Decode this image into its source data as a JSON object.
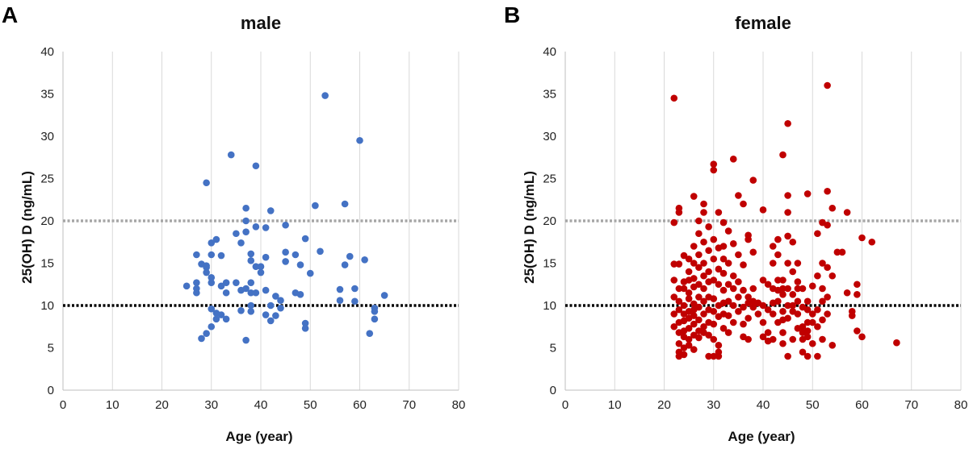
{
  "chart_data": [
    {
      "type": "scatter",
      "panel_letter": "A",
      "title": "male",
      "xlabel": "Age (year)",
      "ylabel": "25(OH) D (ng/mL)",
      "xlim": [
        0,
        80
      ],
      "ylim": [
        0,
        40
      ],
      "xticks": [
        0,
        10,
        20,
        30,
        40,
        50,
        60,
        70,
        80
      ],
      "yticks": [
        0,
        5,
        10,
        15,
        20,
        25,
        30,
        35,
        40
      ],
      "grid": "vertical",
      "point_color": "#4472C4",
      "reference_lines": [
        {
          "y": 20,
          "color": "#A6A6A6",
          "style": "dotted"
        },
        {
          "y": 10,
          "color": "#000000",
          "style": "dotted"
        }
      ],
      "points": [
        [
          25,
          12.3
        ],
        [
          27,
          16.0
        ],
        [
          27,
          12.7
        ],
        [
          27,
          11.5
        ],
        [
          27,
          12.0
        ],
        [
          28,
          14.9
        ],
        [
          28,
          6.1
        ],
        [
          29,
          14.5
        ],
        [
          29,
          13.9
        ],
        [
          29,
          24.5
        ],
        [
          29,
          6.7
        ],
        [
          29,
          14.7
        ],
        [
          30,
          17.4
        ],
        [
          30,
          13.3
        ],
        [
          30,
          12.7
        ],
        [
          30,
          16.0
        ],
        [
          30,
          7.5
        ],
        [
          30,
          9.6
        ],
        [
          31,
          17.8
        ],
        [
          31,
          8.4
        ],
        [
          31,
          9.1
        ],
        [
          32,
          15.9
        ],
        [
          32,
          12.3
        ],
        [
          32,
          8.9
        ],
        [
          33,
          12.7
        ],
        [
          33,
          8.4
        ],
        [
          33,
          11.5
        ],
        [
          34,
          27.8
        ],
        [
          35,
          18.5
        ],
        [
          35,
          12.7
        ],
        [
          36,
          17.4
        ],
        [
          36,
          9.4
        ],
        [
          36,
          11.8
        ],
        [
          37,
          21.5
        ],
        [
          37,
          20.0
        ],
        [
          37,
          18.7
        ],
        [
          37,
          12.0
        ],
        [
          37,
          5.9
        ],
        [
          38,
          16.1
        ],
        [
          38,
          12.7
        ],
        [
          38,
          10.0
        ],
        [
          38,
          9.3
        ],
        [
          38,
          15.3
        ],
        [
          38,
          11.5
        ],
        [
          39,
          26.5
        ],
        [
          39,
          19.3
        ],
        [
          39,
          14.6
        ],
        [
          39,
          11.5
        ],
        [
          40,
          14.6
        ],
        [
          40,
          13.9
        ],
        [
          41,
          19.2
        ],
        [
          41,
          15.7
        ],
        [
          41,
          11.8
        ],
        [
          41,
          8.9
        ],
        [
          42,
          21.2
        ],
        [
          42,
          8.2
        ],
        [
          42,
          10.0
        ],
        [
          43,
          11.1
        ],
        [
          43,
          8.8
        ],
        [
          44,
          10.6
        ],
        [
          44,
          9.7
        ],
        [
          45,
          19.5
        ],
        [
          45,
          16.3
        ],
        [
          45,
          15.2
        ],
        [
          47,
          16.0
        ],
        [
          47,
          11.5
        ],
        [
          48,
          14.8
        ],
        [
          48,
          11.3
        ],
        [
          49,
          17.9
        ],
        [
          49,
          7.9
        ],
        [
          49,
          7.3
        ],
        [
          50,
          13.8
        ],
        [
          51,
          21.8
        ],
        [
          52,
          16.4
        ],
        [
          53,
          34.8
        ],
        [
          56,
          11.9
        ],
        [
          56,
          10.6
        ],
        [
          57,
          22.0
        ],
        [
          57,
          14.8
        ],
        [
          58,
          15.8
        ],
        [
          59,
          12.0
        ],
        [
          59,
          10.5
        ],
        [
          60,
          29.5
        ],
        [
          61,
          15.4
        ],
        [
          62,
          6.7
        ],
        [
          63,
          9.7
        ],
        [
          63,
          9.3
        ],
        [
          63,
          8.4
        ],
        [
          65,
          11.2
        ]
      ]
    },
    {
      "type": "scatter",
      "panel_letter": "B",
      "title": "female",
      "xlabel": "Age (year)",
      "ylabel": "25(OH) D (ng/mL)",
      "xlim": [
        0,
        80
      ],
      "ylim": [
        0,
        40
      ],
      "xticks": [
        0,
        10,
        20,
        30,
        40,
        50,
        60,
        70,
        80
      ],
      "yticks": [
        0,
        5,
        10,
        15,
        20,
        25,
        30,
        35,
        40
      ],
      "grid": "vertical",
      "point_color": "#C00000",
      "reference_lines": [
        {
          "y": 20,
          "color": "#A6A6A6",
          "style": "dotted"
        },
        {
          "y": 10,
          "color": "#000000",
          "style": "dotted"
        }
      ],
      "points": [
        [
          22,
          34.5
        ],
        [
          22,
          19.8
        ],
        [
          22,
          14.9
        ],
        [
          22,
          13.0
        ],
        [
          22,
          11.0
        ],
        [
          22,
          9.0
        ],
        [
          22,
          7.5
        ],
        [
          23,
          21.5
        ],
        [
          23,
          21.0
        ],
        [
          23,
          14.9
        ],
        [
          23,
          12.0
        ],
        [
          23,
          10.5
        ],
        [
          23,
          9.5
        ],
        [
          23,
          8.0
        ],
        [
          23,
          6.8
        ],
        [
          23,
          5.5
        ],
        [
          23,
          4.5
        ],
        [
          23,
          4.0
        ],
        [
          24,
          15.9
        ],
        [
          24,
          12.8
        ],
        [
          24,
          12.0
        ],
        [
          24,
          10.0
        ],
        [
          24,
          9.0
        ],
        [
          24,
          8.2
        ],
        [
          24,
          7.0
        ],
        [
          24,
          6.3
        ],
        [
          24,
          5.0
        ],
        [
          24,
          4.2
        ],
        [
          25,
          15.5
        ],
        [
          25,
          14.0
        ],
        [
          25,
          13.0
        ],
        [
          25,
          11.5
        ],
        [
          25,
          10.8
        ],
        [
          25,
          9.3
        ],
        [
          25,
          8.5
        ],
        [
          25,
          7.3
        ],
        [
          25,
          6.0
        ],
        [
          25,
          5.3
        ],
        [
          26,
          22.9
        ],
        [
          26,
          17.0
        ],
        [
          26,
          15.0
        ],
        [
          26,
          13.2
        ],
        [
          26,
          12.2
        ],
        [
          26,
          10.2
        ],
        [
          26,
          9.5
        ],
        [
          26,
          8.8
        ],
        [
          26,
          7.8
        ],
        [
          26,
          6.5
        ],
        [
          26,
          4.8
        ],
        [
          27,
          20.0
        ],
        [
          27,
          18.5
        ],
        [
          27,
          16.0
        ],
        [
          27,
          14.5
        ],
        [
          27,
          12.5
        ],
        [
          27,
          11.0
        ],
        [
          27,
          9.8
        ],
        [
          27,
          8.3
        ],
        [
          27,
          7.0
        ],
        [
          27,
          6.2
        ],
        [
          28,
          22.0
        ],
        [
          28,
          21.0
        ],
        [
          28,
          17.5
        ],
        [
          28,
          15.0
        ],
        [
          28,
          13.5
        ],
        [
          28,
          12.0
        ],
        [
          28,
          10.5
        ],
        [
          28,
          9.0
        ],
        [
          28,
          7.5
        ],
        [
          28,
          6.8
        ],
        [
          29,
          19.3
        ],
        [
          29,
          16.5
        ],
        [
          29,
          14.0
        ],
        [
          29,
          12.8
        ],
        [
          29,
          11.0
        ],
        [
          29,
          9.5
        ],
        [
          29,
          8.0
        ],
        [
          29,
          6.5
        ],
        [
          29,
          4.0
        ],
        [
          30,
          26.7
        ],
        [
          30,
          26.0
        ],
        [
          30,
          17.8
        ],
        [
          30,
          15.5
        ],
        [
          30,
          13.0
        ],
        [
          30,
          10.8
        ],
        [
          30,
          9.3
        ],
        [
          30,
          7.8
        ],
        [
          30,
          6.0
        ],
        [
          30,
          4.0
        ],
        [
          31,
          21.0
        ],
        [
          31,
          16.8
        ],
        [
          31,
          14.3
        ],
        [
          31,
          12.5
        ],
        [
          31,
          10.0
        ],
        [
          31,
          8.7
        ],
        [
          31,
          5.3
        ],
        [
          31,
          4.5
        ],
        [
          31,
          4.0
        ],
        [
          32,
          19.8
        ],
        [
          32,
          17.0
        ],
        [
          32,
          15.5
        ],
        [
          32,
          13.8
        ],
        [
          32,
          11.8
        ],
        [
          32,
          10.3
        ],
        [
          32,
          9.0
        ],
        [
          32,
          7.3
        ],
        [
          33,
          18.8
        ],
        [
          33,
          15.0
        ],
        [
          33,
          12.5
        ],
        [
          33,
          10.5
        ],
        [
          33,
          8.8
        ],
        [
          33,
          6.8
        ],
        [
          34,
          27.3
        ],
        [
          34,
          17.3
        ],
        [
          34,
          13.5
        ],
        [
          34,
          12.0
        ],
        [
          34,
          10.0
        ],
        [
          34,
          8.0
        ],
        [
          35,
          23.0
        ],
        [
          35,
          16.0
        ],
        [
          35,
          12.8
        ],
        [
          35,
          11.0
        ],
        [
          35,
          9.3
        ],
        [
          36,
          22.0
        ],
        [
          36,
          14.8
        ],
        [
          36,
          11.8
        ],
        [
          36,
          9.8
        ],
        [
          36,
          7.8
        ],
        [
          36,
          6.3
        ],
        [
          37,
          18.3
        ],
        [
          37,
          17.8
        ],
        [
          37,
          11.0
        ],
        [
          37,
          10.3
        ],
        [
          37,
          8.5
        ],
        [
          37,
          6.0
        ],
        [
          38,
          24.8
        ],
        [
          38,
          16.3
        ],
        [
          38,
          12.0
        ],
        [
          38,
          10.5
        ],
        [
          38,
          9.8
        ],
        [
          39,
          10.3
        ],
        [
          39,
          9.0
        ],
        [
          40,
          21.3
        ],
        [
          40,
          13.0
        ],
        [
          40,
          10.0
        ],
        [
          40,
          8.0
        ],
        [
          40,
          6.3
        ],
        [
          41,
          12.5
        ],
        [
          41,
          9.5
        ],
        [
          41,
          6.8
        ],
        [
          41,
          5.8
        ],
        [
          42,
          17.0
        ],
        [
          42,
          15.0
        ],
        [
          42,
          12.0
        ],
        [
          42,
          10.3
        ],
        [
          42,
          9.0
        ],
        [
          42,
          6.0
        ],
        [
          43,
          17.8
        ],
        [
          43,
          16.0
        ],
        [
          43,
          13.0
        ],
        [
          43,
          11.8
        ],
        [
          43,
          10.5
        ],
        [
          43,
          8.0
        ],
        [
          44,
          27.8
        ],
        [
          44,
          13.0
        ],
        [
          44,
          12.0
        ],
        [
          44,
          11.3
        ],
        [
          44,
          9.3
        ],
        [
          44,
          8.3
        ],
        [
          44,
          6.8
        ],
        [
          44,
          5.5
        ],
        [
          45,
          31.5
        ],
        [
          45,
          23.0
        ],
        [
          45,
          21.0
        ],
        [
          45,
          18.2
        ],
        [
          45,
          15.0
        ],
        [
          45,
          12.0
        ],
        [
          45,
          10.0
        ],
        [
          45,
          8.5
        ],
        [
          45,
          4.0
        ],
        [
          46,
          17.5
        ],
        [
          46,
          14.0
        ],
        [
          46,
          11.3
        ],
        [
          46,
          10.0
        ],
        [
          46,
          9.3
        ],
        [
          46,
          6.0
        ],
        [
          47,
          15.0
        ],
        [
          47,
          12.8
        ],
        [
          47,
          12.0
        ],
        [
          47,
          10.5
        ],
        [
          47,
          9.0
        ],
        [
          47,
          7.3
        ],
        [
          48,
          12.0
        ],
        [
          48,
          9.8
        ],
        [
          48,
          7.5
        ],
        [
          48,
          6.8
        ],
        [
          48,
          6.0
        ],
        [
          48,
          4.5
        ],
        [
          49,
          23.2
        ],
        [
          49,
          10.5
        ],
        [
          49,
          9.5
        ],
        [
          49,
          8.0
        ],
        [
          49,
          7.0
        ],
        [
          49,
          6.3
        ],
        [
          49,
          4.0
        ],
        [
          50,
          12.3
        ],
        [
          50,
          9.0
        ],
        [
          50,
          8.0
        ],
        [
          50,
          5.5
        ],
        [
          51,
          18.5
        ],
        [
          51,
          13.5
        ],
        [
          51,
          9.5
        ],
        [
          51,
          7.5
        ],
        [
          51,
          4.0
        ],
        [
          52,
          19.8
        ],
        [
          52,
          15.0
        ],
        [
          52,
          12.0
        ],
        [
          52,
          10.5
        ],
        [
          52,
          8.3
        ],
        [
          52,
          6.0
        ],
        [
          53,
          36.0
        ],
        [
          53,
          23.5
        ],
        [
          53,
          19.5
        ],
        [
          53,
          14.5
        ],
        [
          53,
          11.0
        ],
        [
          53,
          9.0
        ],
        [
          54,
          21.5
        ],
        [
          54,
          13.5
        ],
        [
          54,
          5.3
        ],
        [
          55,
          16.3
        ],
        [
          56,
          16.3
        ],
        [
          57,
          21.0
        ],
        [
          57,
          11.5
        ],
        [
          58,
          9.3
        ],
        [
          58,
          8.8
        ],
        [
          59,
          12.5
        ],
        [
          59,
          11.3
        ],
        [
          59,
          7.0
        ],
        [
          60,
          18.0
        ],
        [
          60,
          6.3
        ],
        [
          62,
          17.5
        ],
        [
          67,
          5.6
        ]
      ]
    }
  ]
}
